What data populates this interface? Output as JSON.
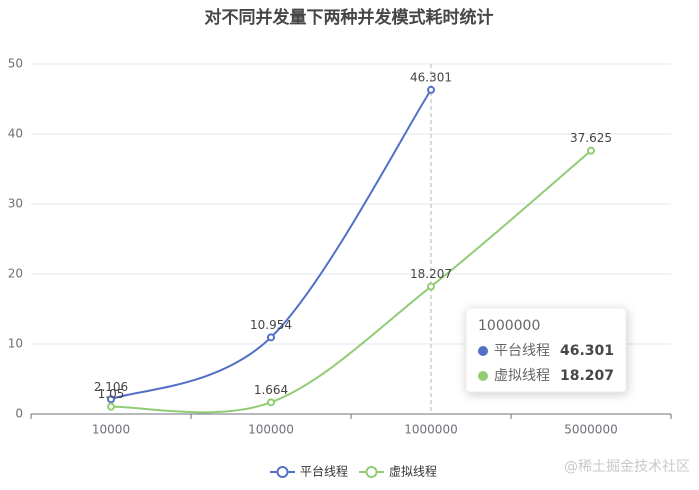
{
  "chart_data": {
    "type": "line",
    "title": "对不同并发量下两种并发模式耗时统计",
    "categories": [
      "10000",
      "100000",
      "1000000",
      "5000000"
    ],
    "series": [
      {
        "name": "平台线程",
        "color": "#5470c6",
        "values": [
          2.106,
          10.954,
          46.301,
          null
        ]
      },
      {
        "name": "虚拟线程",
        "color": "#91cc75",
        "values": [
          1.05,
          1.664,
          18.207,
          37.625
        ]
      }
    ],
    "ylim": [
      0,
      50
    ],
    "yticks": [
      0,
      10,
      20,
      30,
      40,
      50
    ],
    "grid": true,
    "smooth": true,
    "legend_position": "bottom",
    "tooltip_index": 2,
    "watermark": "@稀土掘金技术社区"
  }
}
